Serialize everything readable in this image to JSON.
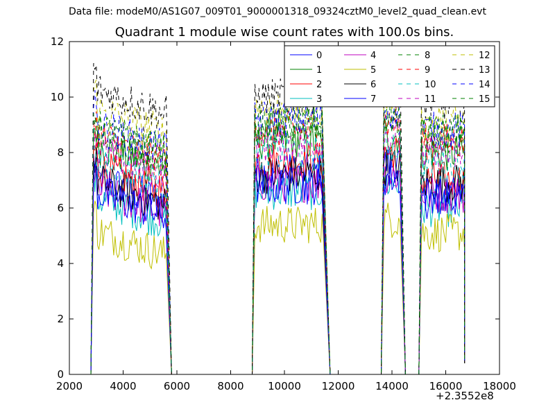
{
  "chart_data": {
    "type": "line",
    "suptitle": "Data file: modeM0/AS1G07_009T01_9000001318_09324cztM0_level2_quad_clean.evt",
    "title": "Quadrant 1 module wise count rates with 100.0s bins.",
    "xlabel": "",
    "ylabel": "",
    "x_offset_label": "+2.3552e8",
    "xlim": [
      2000,
      18000
    ],
    "ylim": [
      0,
      12
    ],
    "xticks": [
      2000,
      4000,
      6000,
      8000,
      10000,
      12000,
      14000,
      16000,
      18000
    ],
    "yticks": [
      0,
      2,
      4,
      6,
      8,
      10,
      12
    ],
    "grid": false,
    "legend_location": "top-right",
    "legend_columns": 4,
    "series": [
      {
        "name": "0",
        "color": "#0000ff",
        "dash": "solid",
        "level": [
          7.1,
          7.3,
          7.6,
          6.3
        ]
      },
      {
        "name": "1",
        "color": "#008000",
        "dash": "solid",
        "level": [
          8.3,
          8.4,
          8.6,
          8.0
        ]
      },
      {
        "name": "2",
        "color": "#ff0000",
        "dash": "solid",
        "level": [
          7.5,
          7.7,
          8.0,
          7.0
        ]
      },
      {
        "name": "3",
        "color": "#00bfbf",
        "dash": "solid",
        "level": [
          6.4,
          6.6,
          6.9,
          6.0
        ]
      },
      {
        "name": "4",
        "color": "#bf00bf",
        "dash": "solid",
        "level": [
          6.7,
          6.9,
          7.2,
          6.5
        ]
      },
      {
        "name": "5",
        "color": "#bfbf00",
        "dash": "solid",
        "level": [
          5.2,
          5.4,
          5.6,
          5.1
        ]
      },
      {
        "name": "6",
        "color": "#000000",
        "dash": "solid",
        "level": [
          7.0,
          7.2,
          7.5,
          6.9
        ]
      },
      {
        "name": "7",
        "color": "#0000ff",
        "dash": "solid",
        "level": [
          6.6,
          6.8,
          7.1,
          6.5
        ]
      },
      {
        "name": "8",
        "color": "#008000",
        "dash": "dashed",
        "level": [
          8.8,
          9.0,
          9.3,
          8.6
        ]
      },
      {
        "name": "9",
        "color": "#ff0000",
        "dash": "dashed",
        "level": [
          8.6,
          8.8,
          9.1,
          8.4
        ]
      },
      {
        "name": "10",
        "color": "#00bfbf",
        "dash": "dashed",
        "level": [
          7.8,
          8.0,
          8.3,
          7.6
        ]
      },
      {
        "name": "11",
        "color": "#bf00bf",
        "dash": "dashed",
        "level": [
          8.1,
          8.3,
          8.6,
          7.9
        ]
      },
      {
        "name": "12",
        "color": "#bfbf00",
        "dash": "dashed",
        "level": [
          9.6,
          9.6,
          9.9,
          9.1
        ]
      },
      {
        "name": "13",
        "color": "#000000",
        "dash": "dashed",
        "level": [
          10.3,
          10.0,
          10.6,
          9.8
        ]
      },
      {
        "name": "14",
        "color": "#0000ff",
        "dash": "dashed",
        "level": [
          9.0,
          9.2,
          9.5,
          8.8
        ]
      },
      {
        "name": "15",
        "color": "#008000",
        "dash": "dashed",
        "level": [
          8.9,
          9.0,
          9.3,
          8.7
        ]
      }
    ],
    "segments": [
      {
        "x_start": 2900,
        "x_end": 5600,
        "drop_to": 5800
      },
      {
        "x_start": 8900,
        "x_end": 11400,
        "drop_to": 11700
      },
      {
        "x_start": 13700,
        "x_end": 14300,
        "drop_to": 14500
      },
      {
        "x_start": 15100,
        "x_end": 16700,
        "drop_to": 16700
      }
    ]
  }
}
